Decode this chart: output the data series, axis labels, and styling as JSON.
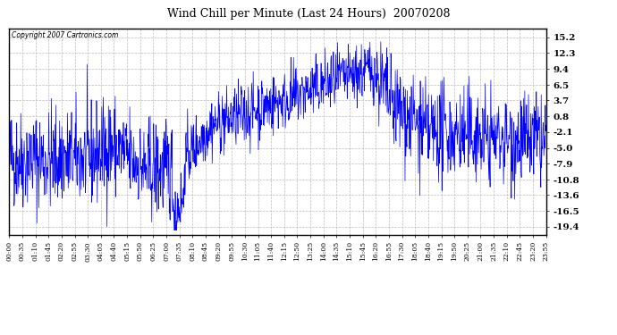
{
  "title": "Wind Chill per Minute (Last 24 Hours)  20070208",
  "copyright_text": "Copyright 2007 Cartronics.com",
  "line_color": "#0000FF",
  "bg_color": "#ffffff",
  "plot_bg_color": "#ffffff",
  "grid_color": "#bbbbbb",
  "yticks": [
    15.2,
    12.3,
    9.4,
    6.5,
    3.7,
    0.8,
    -2.1,
    -5.0,
    -7.9,
    -10.8,
    -13.6,
    -16.5,
    -19.4
  ],
  "ylim": [
    -20.8,
    16.8
  ],
  "xtick_labels": [
    "00:00",
    "00:35",
    "01:10",
    "01:45",
    "02:20",
    "02:55",
    "03:30",
    "04:05",
    "04:40",
    "05:15",
    "05:50",
    "06:25",
    "07:00",
    "07:35",
    "08:10",
    "08:45",
    "09:20",
    "09:55",
    "10:30",
    "11:05",
    "11:40",
    "12:15",
    "12:50",
    "13:25",
    "14:00",
    "14:35",
    "15:10",
    "15:45",
    "16:20",
    "16:55",
    "17:30",
    "18:05",
    "18:40",
    "19:15",
    "19:50",
    "20:25",
    "21:00",
    "21:35",
    "22:10",
    "22:45",
    "23:20",
    "23:55"
  ],
  "seed": 42,
  "noise_scale": 2.8
}
